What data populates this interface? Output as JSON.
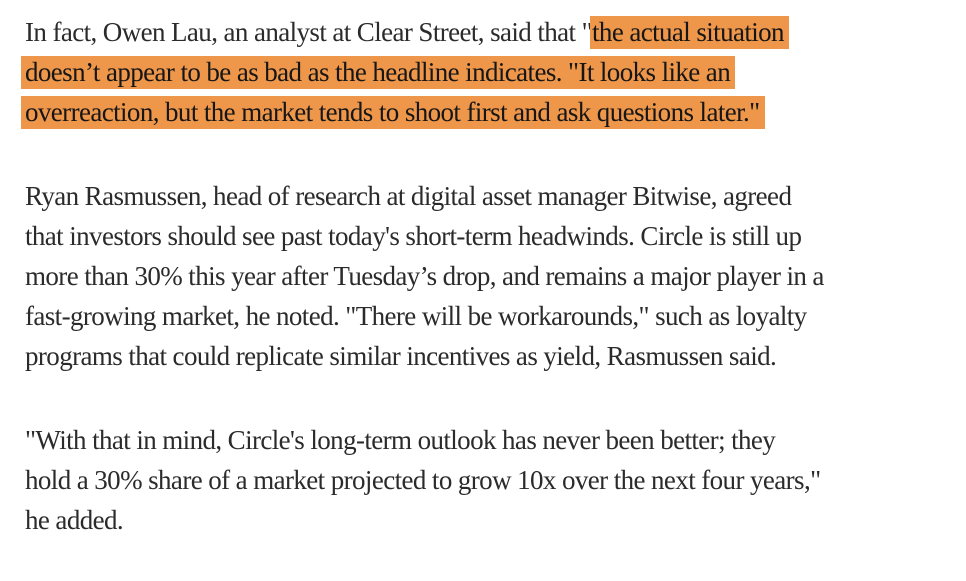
{
  "page": {
    "background": "#ffffff",
    "text_color": "#2b2b2b",
    "highlight_color": "#ee964a",
    "highlight_text_color": "#161616"
  },
  "article": {
    "paragraph1": {
      "line1_normal": "In fact, Owen Lau, an analyst at Clear Street, said that \"",
      "line1_highlight": "the actual situation",
      "line2_highlight": "doesn’t appear to be as bad as the headline indicates. \"It looks like an",
      "line3_highlight": "overreaction, but the market tends to shoot first and ask questions later.\""
    },
    "paragraph2": {
      "line1": "Ryan Rasmussen, head of research at digital asset manager Bitwise, agreed",
      "line2": "that investors should see past today's short-term headwinds. Circle is still up",
      "line3": "more than 30% this year after Tuesday’s drop, and remains a major player in a",
      "line4": "fast-growing market, he noted. \"There will be workarounds,\" such as loyalty",
      "line5": "programs that could replicate similar incentives as yield, Rasmussen said."
    },
    "paragraph3": {
      "line1": "\"With that in mind, Circle's long-term outlook has never been better; they",
      "line2": "hold a 30% share of a market projected to grow 10x over the next four years,\"",
      "line3": "he added."
    }
  }
}
